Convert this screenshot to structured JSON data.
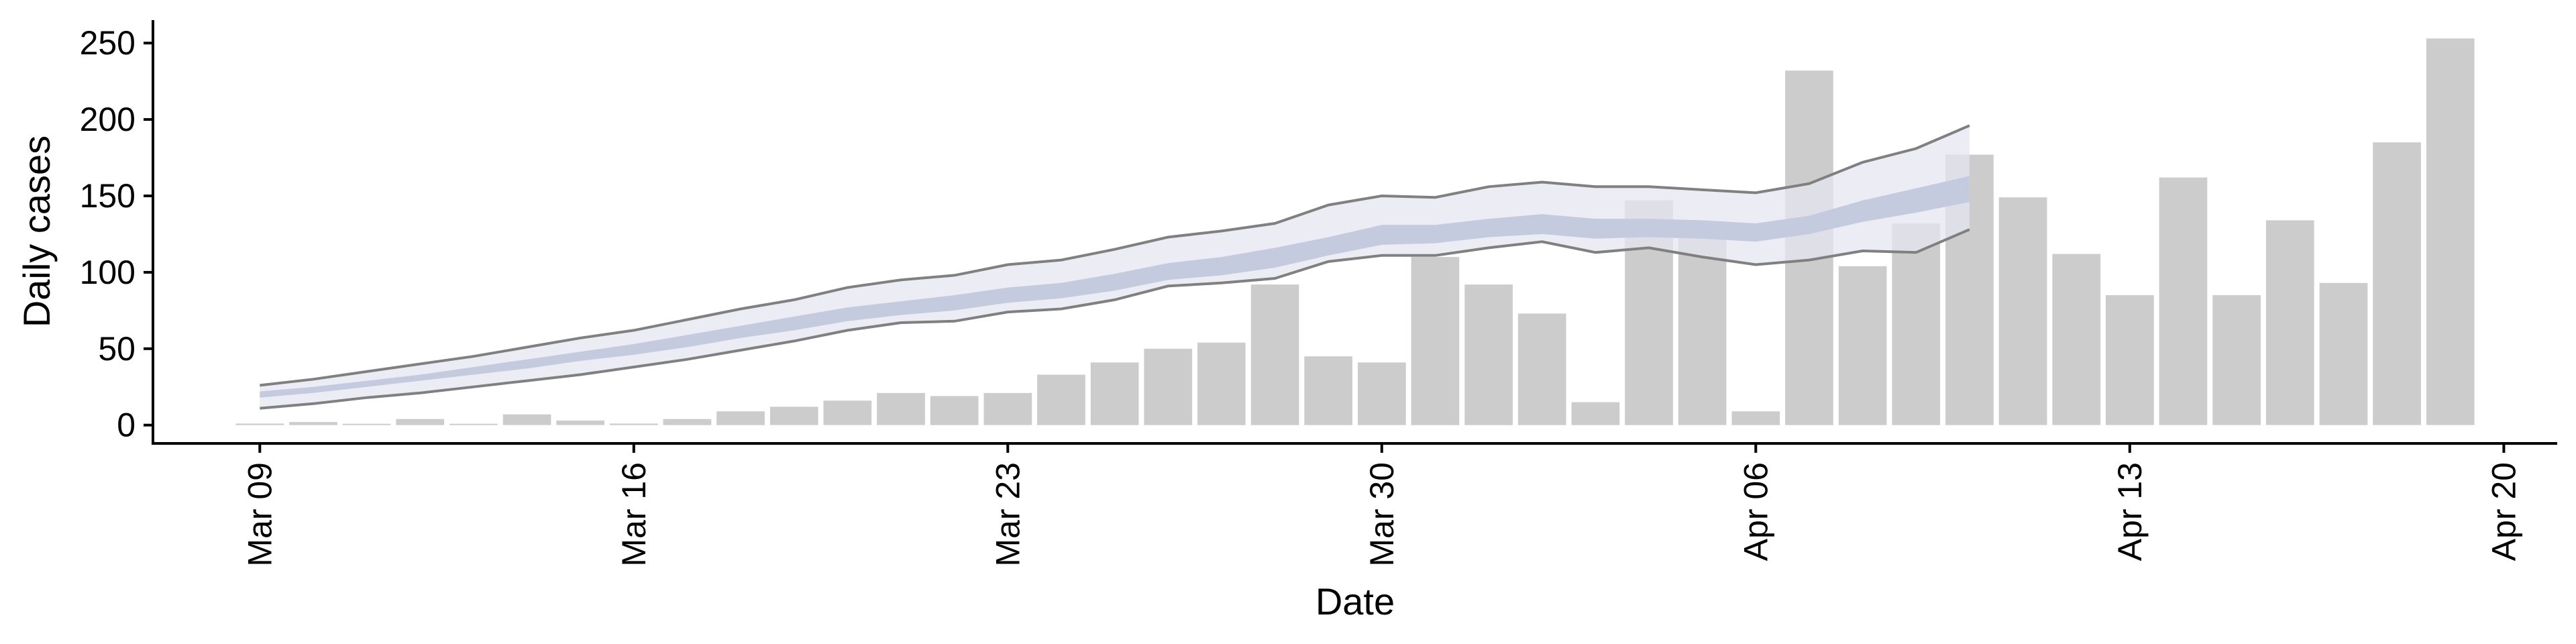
{
  "chart_data": {
    "type": "bar",
    "xlabel": "Date",
    "ylabel": "Daily cases",
    "ylim": [
      -12,
      265
    ],
    "yticks": [
      0,
      50,
      100,
      150,
      200,
      250
    ],
    "xlim": [
      "2020-03-07",
      "2020-04-21"
    ],
    "xticks": [
      {
        "date": "2020-03-09",
        "label": "Mar 09"
      },
      {
        "date": "2020-03-16",
        "label": "Mar 16"
      },
      {
        "date": "2020-03-23",
        "label": "Mar 23"
      },
      {
        "date": "2020-03-30",
        "label": "Mar 30"
      },
      {
        "date": "2020-04-06",
        "label": "Apr 06"
      },
      {
        "date": "2020-04-13",
        "label": "Apr 13"
      },
      {
        "date": "2020-04-20",
        "label": "Apr 20"
      }
    ],
    "grid": false,
    "bars": {
      "dates": [
        "2020-03-09",
        "2020-03-10",
        "2020-03-11",
        "2020-03-12",
        "2020-03-13",
        "2020-03-14",
        "2020-03-15",
        "2020-03-16",
        "2020-03-17",
        "2020-03-18",
        "2020-03-19",
        "2020-03-20",
        "2020-03-21",
        "2020-03-22",
        "2020-03-23",
        "2020-03-24",
        "2020-03-25",
        "2020-03-26",
        "2020-03-27",
        "2020-03-28",
        "2020-03-29",
        "2020-03-30",
        "2020-03-31",
        "2020-04-01",
        "2020-04-02",
        "2020-04-03",
        "2020-04-04",
        "2020-04-05",
        "2020-04-06",
        "2020-04-07",
        "2020-04-08",
        "2020-04-09",
        "2020-04-10",
        "2020-04-11",
        "2020-04-12",
        "2020-04-13",
        "2020-04-14",
        "2020-04-15",
        "2020-04-16",
        "2020-04-17",
        "2020-04-18",
        "2020-04-19"
      ],
      "values": [
        1,
        2,
        0,
        4,
        0,
        7,
        3,
        1,
        4,
        9,
        12,
        16,
        21,
        19,
        21,
        33,
        41,
        50,
        54,
        92,
        45,
        41,
        110,
        92,
        73,
        15,
        147,
        131,
        9,
        232,
        104,
        132,
        177,
        149,
        112,
        85,
        162,
        85,
        134,
        93,
        185,
        253
      ]
    },
    "estimate": {
      "dates": [
        "2020-03-09",
        "2020-03-10",
        "2020-03-11",
        "2020-03-12",
        "2020-03-13",
        "2020-03-14",
        "2020-03-15",
        "2020-03-16",
        "2020-03-17",
        "2020-03-18",
        "2020-03-19",
        "2020-03-20",
        "2020-03-21",
        "2020-03-22",
        "2020-03-23",
        "2020-03-24",
        "2020-03-25",
        "2020-03-26",
        "2020-03-27",
        "2020-03-28",
        "2020-03-29",
        "2020-03-30",
        "2020-03-31",
        "2020-04-01",
        "2020-04-02",
        "2020-04-03",
        "2020-04-04",
        "2020-04-05",
        "2020-04-06",
        "2020-04-07",
        "2020-04-08",
        "2020-04-09",
        "2020-04-10"
      ],
      "outer_upper": [
        26,
        30,
        35,
        40,
        45,
        51,
        57,
        62,
        69,
        76,
        82,
        90,
        95,
        98,
        105,
        108,
        115,
        123,
        127,
        132,
        144,
        150,
        149,
        156,
        159,
        156,
        156,
        154,
        152,
        158,
        172,
        181,
        196
      ],
      "outer_lower": [
        11,
        14,
        18,
        21,
        25,
        29,
        33,
        38,
        43,
        49,
        55,
        62,
        67,
        68,
        74,
        76,
        82,
        91,
        93,
        96,
        107,
        111,
        111,
        116,
        120,
        113,
        116,
        110,
        105,
        108,
        114,
        113,
        128
      ],
      "inner_upper": [
        22,
        25,
        29,
        33,
        38,
        43,
        48,
        53,
        59,
        65,
        71,
        77,
        81,
        85,
        90,
        93,
        99,
        106,
        110,
        116,
        123,
        131,
        131,
        135,
        138,
        135,
        135,
        134,
        132,
        137,
        147,
        155,
        163
      ],
      "inner_lower": [
        18,
        21,
        25,
        29,
        33,
        37,
        42,
        46,
        51,
        57,
        62,
        68,
        72,
        75,
        80,
        83,
        88,
        95,
        98,
        103,
        111,
        118,
        119,
        123,
        125,
        122,
        123,
        122,
        120,
        125,
        133,
        139,
        146
      ],
      "outer_color": "#e4e6f0",
      "inner_color": "#c3c9dd",
      "bound_color": "#808080"
    }
  }
}
